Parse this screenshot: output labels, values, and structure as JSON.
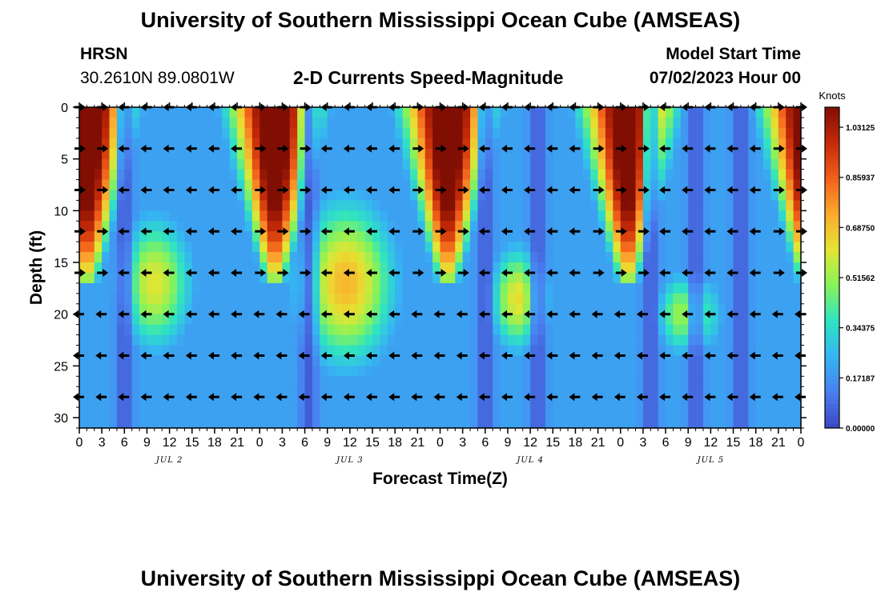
{
  "header": {
    "title": "University of Southern Mississippi Ocean Cube (AMSEAS)",
    "station": "HRSN",
    "coords": "30.2610N  89.0801W",
    "subtitle": "2-D Currents Speed-Magnitude",
    "model_start_label": "Model Start Time",
    "model_start_value": "07/02/2023 Hour 00"
  },
  "footer": {
    "title": "University of Southern Mississippi Ocean Cube (AMSEAS)"
  },
  "chart_data": {
    "type": "heatmap",
    "title": "2-D Currents Speed-Magnitude",
    "xlabel": "Forecast Time(Z)",
    "ylabel": "Depth (ft)",
    "xlim": [
      0,
      96
    ],
    "ylim": [
      0,
      31
    ],
    "x_ticks": [
      0,
      3,
      6,
      9,
      12,
      15,
      18,
      21,
      24,
      27,
      30,
      33,
      36,
      39,
      42,
      45,
      48,
      51,
      54,
      57,
      60,
      63,
      66,
      69,
      72,
      75,
      78,
      81,
      84,
      87,
      90,
      93,
      96
    ],
    "x_tick_labels": [
      "0",
      "3",
      "6",
      "9",
      "12",
      "15",
      "18",
      "21",
      "0",
      "3",
      "6",
      "9",
      "12",
      "15",
      "18",
      "21",
      "0",
      "3",
      "6",
      "9",
      "12",
      "15",
      "18",
      "21",
      "0",
      "3",
      "6",
      "9",
      "12",
      "15",
      "18",
      "21",
      "0"
    ],
    "y_ticks": [
      0,
      5,
      10,
      15,
      20,
      25,
      30
    ],
    "y_tick_labels": [
      "0",
      "5",
      "10",
      "15",
      "20",
      "25",
      "30"
    ],
    "day_labels": [
      {
        "x": 12,
        "label": "JUL 2"
      },
      {
        "x": 36,
        "label": "JUL 3"
      },
      {
        "x": 60,
        "label": "JUL 4"
      },
      {
        "x": 84,
        "label": "JUL 5"
      }
    ],
    "colorbar": {
      "label": "Knots",
      "min": 0,
      "max": 1.1,
      "ticks": [
        0.0,
        0.171875,
        0.34375,
        0.515625,
        0.6875,
        0.859375,
        1.03125
      ],
      "tick_labels": [
        "0.00000",
        "0.17187",
        "0.34375",
        "0.51562",
        "0.68750",
        "0.85937",
        "1.03125"
      ]
    },
    "colors": [
      "#3b46c4",
      "#4a7ff0",
      "#35b5f2",
      "#2ee3c2",
      "#86f35a",
      "#e4e532",
      "#fcab2e",
      "#f2601a",
      "#c52a08",
      "#800e03"
    ],
    "speed_model": {
      "tide_centers": [
        1,
        26,
        49,
        73,
        97
      ],
      "tide_peak": 1.25,
      "tide_half_width_surface": 5.5,
      "tide_depth_taper": 0.72,
      "tide_max_depth": 17,
      "subsurface_blobs": [
        {
          "x": 10,
          "y": 17,
          "sx": 3.5,
          "sy": 4.5,
          "v": 0.56
        },
        {
          "x": 35.5,
          "y": 17,
          "sx": 4.5,
          "sy": 5.5,
          "v": 0.66
        },
        {
          "x": 58.5,
          "y": 18.5,
          "sx": 2.8,
          "sy": 3.5,
          "v": 0.58
        },
        {
          "x": 81,
          "y": 20,
          "sx": 3,
          "sy": 2.8,
          "v": 0.52
        }
      ],
      "slack_minima": [
        6,
        30.5,
        54,
        61,
        76,
        82,
        88
      ],
      "background": 0.2
    },
    "vector_depths": [
      0,
      4,
      8,
      12,
      16,
      20,
      24,
      28
    ],
    "vector_times": [
      0,
      3,
      6,
      9,
      12,
      15,
      18,
      21,
      24,
      27,
      30,
      33,
      36,
      39,
      42,
      45,
      48,
      51,
      54,
      57,
      60,
      63,
      66,
      69,
      72,
      75,
      78,
      81,
      84,
      87,
      90,
      93,
      96
    ],
    "vector_direction_rule": "east (right) while the surface ebb is active near each tide peak, west (left) during the intervening slack and flood periods"
  }
}
